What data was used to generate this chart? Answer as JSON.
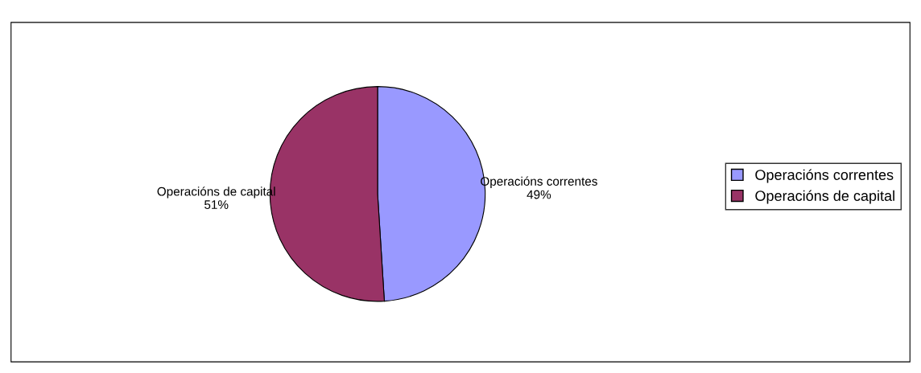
{
  "chart_data": {
    "type": "pie",
    "categories": [
      "Operacións correntes",
      "Operacións de capital"
    ],
    "values": [
      49,
      51
    ],
    "colors": [
      "#9999ff",
      "#993366"
    ],
    "value_labels": [
      "49%",
      "51%"
    ],
    "legend": "right"
  }
}
